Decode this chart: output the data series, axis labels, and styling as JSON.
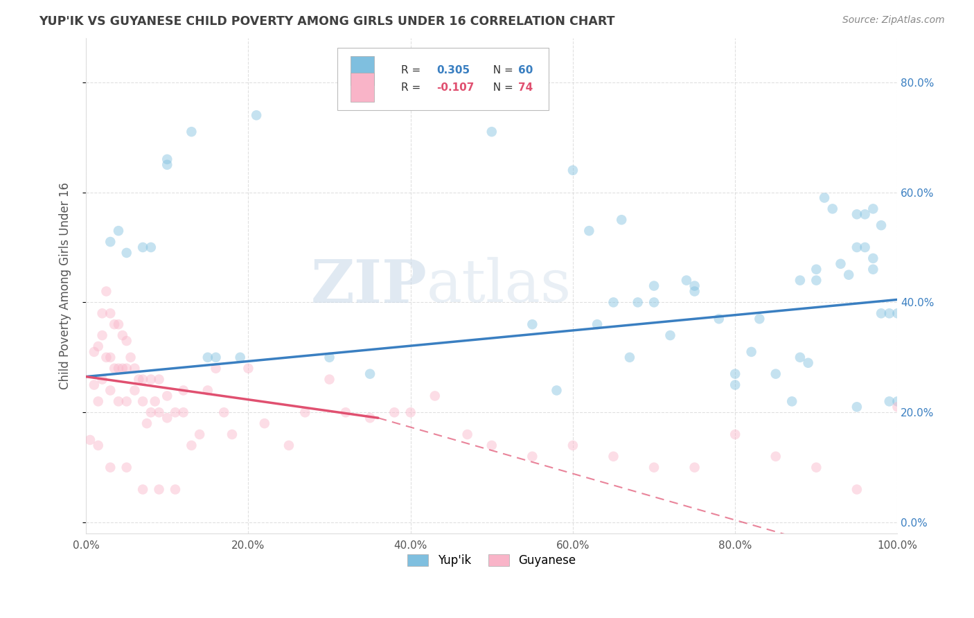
{
  "title": "YUP'IK VS GUYANESE CHILD POVERTY AMONG GIRLS UNDER 16 CORRELATION CHART",
  "source": "Source: ZipAtlas.com",
  "ylabel": "Child Poverty Among Girls Under 16",
  "legend_blue_r_val": "0.305",
  "legend_blue_n_val": "60",
  "legend_pink_r_val": "-0.107",
  "legend_pink_n_val": "74",
  "blue_color": "#7fbfdf",
  "pink_color": "#f9b4c8",
  "blue_line_color": "#3a7fc1",
  "pink_line_color": "#e05070",
  "watermark_zip": "ZIP",
  "watermark_atlas": "atlas",
  "xmin": 0.0,
  "xmax": 1.0,
  "ymin": -0.02,
  "ymax": 0.88,
  "yticks": [
    0.0,
    0.2,
    0.4,
    0.6,
    0.8
  ],
  "xticks": [
    0.0,
    0.2,
    0.4,
    0.6,
    0.8,
    1.0
  ],
  "blue_scatter_x": [
    0.03,
    0.04,
    0.05,
    0.07,
    0.08,
    0.1,
    0.1,
    0.13,
    0.15,
    0.16,
    0.19,
    0.21,
    0.3,
    0.35,
    0.5,
    0.55,
    0.58,
    0.6,
    0.63,
    0.65,
    0.67,
    0.68,
    0.7,
    0.72,
    0.74,
    0.75,
    0.78,
    0.8,
    0.82,
    0.85,
    0.87,
    0.88,
    0.89,
    0.9,
    0.91,
    0.92,
    0.93,
    0.94,
    0.95,
    0.95,
    0.96,
    0.96,
    0.97,
    0.97,
    0.98,
    0.98,
    0.99,
    0.99,
    1.0,
    1.0,
    0.62,
    0.66,
    0.7,
    0.75,
    0.8,
    0.83,
    0.88,
    0.9,
    0.95,
    0.97
  ],
  "blue_scatter_y": [
    0.51,
    0.53,
    0.49,
    0.5,
    0.5,
    0.65,
    0.66,
    0.71,
    0.3,
    0.3,
    0.3,
    0.74,
    0.3,
    0.27,
    0.71,
    0.36,
    0.24,
    0.64,
    0.36,
    0.4,
    0.3,
    0.4,
    0.4,
    0.34,
    0.44,
    0.42,
    0.37,
    0.27,
    0.31,
    0.27,
    0.22,
    0.3,
    0.29,
    0.44,
    0.59,
    0.57,
    0.47,
    0.45,
    0.56,
    0.5,
    0.56,
    0.5,
    0.57,
    0.46,
    0.38,
    0.54,
    0.38,
    0.22,
    0.38,
    0.22,
    0.53,
    0.55,
    0.43,
    0.43,
    0.25,
    0.37,
    0.44,
    0.46,
    0.21,
    0.48
  ],
  "pink_scatter_x": [
    0.005,
    0.01,
    0.01,
    0.015,
    0.015,
    0.015,
    0.02,
    0.02,
    0.02,
    0.025,
    0.025,
    0.03,
    0.03,
    0.03,
    0.035,
    0.035,
    0.04,
    0.04,
    0.04,
    0.045,
    0.045,
    0.05,
    0.05,
    0.05,
    0.055,
    0.06,
    0.06,
    0.065,
    0.07,
    0.07,
    0.075,
    0.08,
    0.08,
    0.085,
    0.09,
    0.09,
    0.1,
    0.1,
    0.11,
    0.12,
    0.12,
    0.13,
    0.14,
    0.15,
    0.16,
    0.17,
    0.18,
    0.2,
    0.22,
    0.25,
    0.27,
    0.3,
    0.32,
    0.35,
    0.38,
    0.4,
    0.43,
    0.47,
    0.5,
    0.55,
    0.6,
    0.65,
    0.7,
    0.75,
    0.8,
    0.85,
    0.9,
    0.95,
    1.0,
    0.03,
    0.05,
    0.07,
    0.09,
    0.11
  ],
  "pink_scatter_y": [
    0.15,
    0.31,
    0.25,
    0.32,
    0.22,
    0.14,
    0.38,
    0.34,
    0.26,
    0.42,
    0.3,
    0.38,
    0.3,
    0.24,
    0.36,
    0.28,
    0.36,
    0.28,
    0.22,
    0.34,
    0.28,
    0.33,
    0.28,
    0.22,
    0.3,
    0.28,
    0.24,
    0.26,
    0.26,
    0.22,
    0.18,
    0.26,
    0.2,
    0.22,
    0.26,
    0.2,
    0.23,
    0.19,
    0.2,
    0.2,
    0.24,
    0.14,
    0.16,
    0.24,
    0.28,
    0.2,
    0.16,
    0.28,
    0.18,
    0.14,
    0.2,
    0.26,
    0.2,
    0.19,
    0.2,
    0.2,
    0.23,
    0.16,
    0.14,
    0.12,
    0.14,
    0.12,
    0.1,
    0.1,
    0.16,
    0.12,
    0.1,
    0.06,
    0.21,
    0.1,
    0.1,
    0.06,
    0.06,
    0.06
  ],
  "blue_trend": [
    0.0,
    1.0,
    0.265,
    0.405
  ],
  "pink_solid_trend": [
    0.0,
    0.36,
    0.265,
    0.19
  ],
  "pink_dashed_trend": [
    0.36,
    1.0,
    0.19,
    -0.08
  ],
  "marker_size": 110,
  "marker_alpha": 0.45,
  "bg_color": "#ffffff",
  "grid_color": "#cccccc",
  "spine_color": "#dddddd",
  "title_color": "#404040",
  "ylabel_color": "#555555",
  "right_tick_color": "#3a7fc1"
}
